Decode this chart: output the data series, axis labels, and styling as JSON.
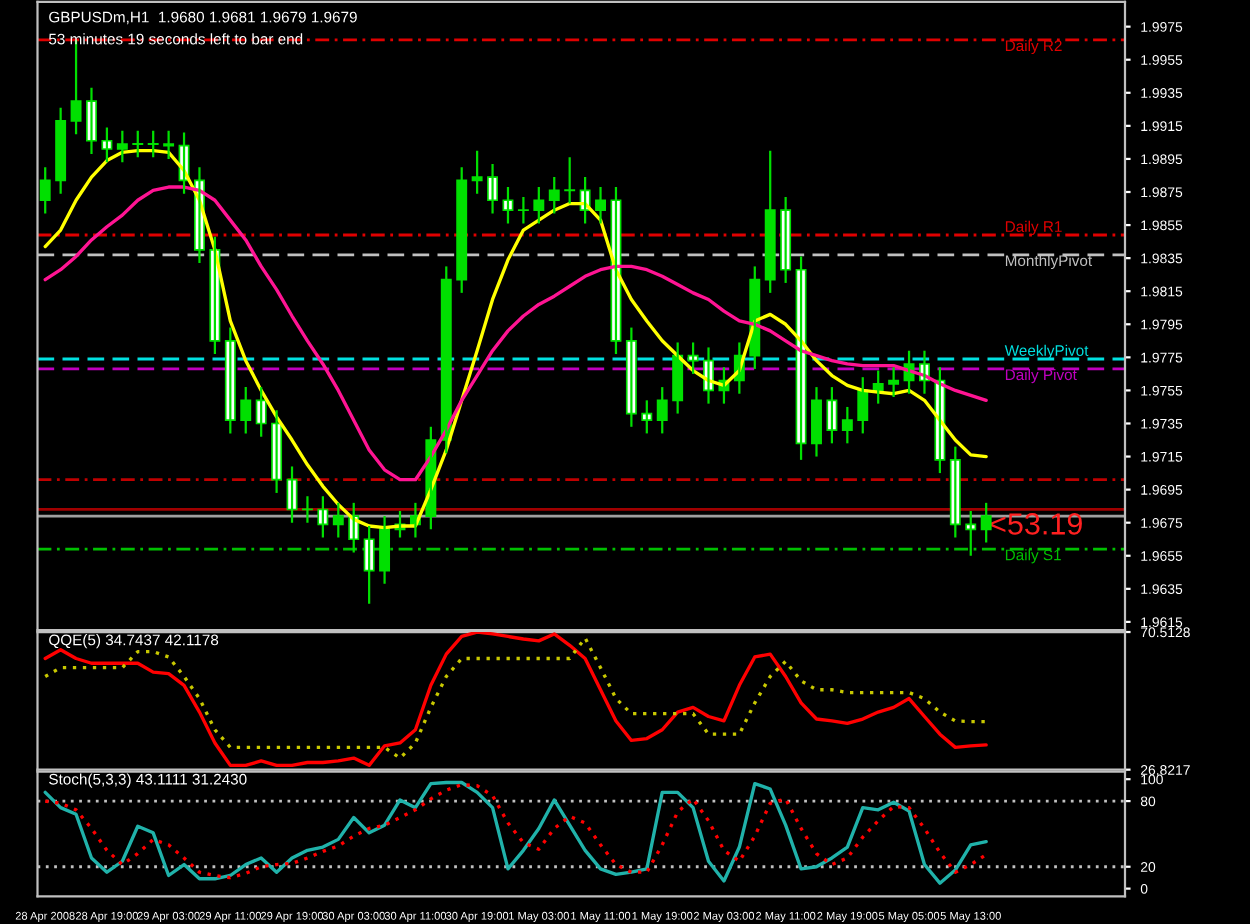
{
  "chart_data": [
    {
      "type": "candlestick",
      "title": "GBPUSDm,H1  1.9680 1.9681 1.9679 1.9679",
      "subtitle": "53 minutes 19 seconds left to bar end",
      "categories": [
        null,
        null,
        null,
        null,
        null,
        null,
        null,
        null,
        null,
        null,
        null,
        null,
        null,
        null,
        null,
        null,
        null,
        null,
        null,
        null,
        null,
        null,
        null,
        null,
        null,
        null,
        null,
        null,
        null,
        null,
        null,
        null,
        null,
        null,
        null,
        null,
        null,
        null,
        null,
        null,
        null,
        null,
        null,
        null,
        null,
        null,
        null,
        null,
        null,
        null,
        null,
        null,
        null,
        null,
        null,
        null,
        null,
        null,
        null,
        null,
        null,
        null
      ],
      "ohlc": [
        [
          1.987,
          1.989,
          1.9862,
          1.9882
        ],
        [
          1.9882,
          1.9926,
          1.9874,
          1.9918
        ],
        [
          1.9918,
          1.9967,
          1.991,
          1.993
        ],
        [
          1.993,
          1.9938,
          1.9898,
          1.9906
        ],
        [
          1.9906,
          1.9914,
          1.9893,
          1.9901
        ],
        [
          1.9901,
          1.9912,
          1.9893,
          1.9904
        ],
        [
          1.9904,
          1.9912,
          1.9896,
          1.9904
        ],
        [
          1.9904,
          1.9912,
          1.9896,
          1.9904
        ],
        [
          1.9904,
          1.9912,
          1.9895,
          1.9903
        ],
        [
          1.9903,
          1.9911,
          1.9874,
          1.9882
        ],
        [
          1.9882,
          1.989,
          1.9832,
          1.984
        ],
        [
          1.984,
          1.9848,
          1.9777,
          1.9785
        ],
        [
          1.9785,
          1.9793,
          1.9729,
          1.9737
        ],
        [
          1.9737,
          1.9757,
          1.9729,
          1.9749
        ],
        [
          1.9749,
          1.9757,
          1.9727,
          1.9735
        ],
        [
          1.9735,
          1.9743,
          1.9693,
          1.9701
        ],
        [
          1.9701,
          1.9709,
          1.9675,
          1.9683
        ],
        [
          1.9683,
          1.9691,
          1.9675,
          1.9683
        ],
        [
          1.9683,
          1.9691,
          1.9666,
          1.9674
        ],
        [
          1.9674,
          1.9687,
          1.9666,
          1.9679
        ],
        [
          1.9679,
          1.9687,
          1.9657,
          1.9665
        ],
        [
          1.9665,
          1.9673,
          1.9626,
          1.9646
        ],
        [
          1.9646,
          1.9679,
          1.9638,
          1.9671
        ],
        [
          1.9671,
          1.9682,
          1.9666,
          1.9674
        ],
        [
          1.9674,
          1.9687,
          1.9666,
          1.9679
        ],
        [
          1.9679,
          1.9733,
          1.9671,
          1.9725
        ],
        [
          1.9725,
          1.983,
          1.9717,
          1.9822
        ],
        [
          1.9822,
          1.989,
          1.9814,
          1.9882
        ],
        [
          1.9882,
          1.99,
          1.9874,
          1.9884
        ],
        [
          1.9884,
          1.9892,
          1.9862,
          1.987
        ],
        [
          1.987,
          1.9878,
          1.9856,
          1.9864
        ],
        [
          1.9864,
          1.9872,
          1.9856,
          1.9864
        ],
        [
          1.9864,
          1.9878,
          1.9856,
          1.987
        ],
        [
          1.987,
          1.9884,
          1.9862,
          1.9876
        ],
        [
          1.9876,
          1.9896,
          1.9868,
          1.9876
        ],
        [
          1.9876,
          1.9884,
          1.9856,
          1.9864
        ],
        [
          1.9864,
          1.9878,
          1.9856,
          1.987
        ],
        [
          1.987,
          1.9878,
          1.9777,
          1.9785
        ],
        [
          1.9785,
          1.9793,
          1.9733,
          1.9741
        ],
        [
          1.9741,
          1.9749,
          1.9729,
          1.9737
        ],
        [
          1.9737,
          1.9757,
          1.9729,
          1.9749
        ],
        [
          1.9749,
          1.9784,
          1.9741,
          1.9776
        ],
        [
          1.9776,
          1.9784,
          1.9765,
          1.9773
        ],
        [
          1.9773,
          1.9781,
          1.9747,
          1.9755
        ],
        [
          1.9755,
          1.9769,
          1.9747,
          1.9761
        ],
        [
          1.9761,
          1.9784,
          1.9753,
          1.9776
        ],
        [
          1.9776,
          1.983,
          1.9768,
          1.9822
        ],
        [
          1.9822,
          1.99,
          1.9814,
          1.9864
        ],
        [
          1.9864,
          1.9872,
          1.982,
          1.9828
        ],
        [
          1.9828,
          1.9836,
          1.9713,
          1.9723
        ],
        [
          1.9723,
          1.9757,
          1.9715,
          1.9749
        ],
        [
          1.9749,
          1.9757,
          1.9723,
          1.9731
        ],
        [
          1.9731,
          1.9745,
          1.9723,
          1.9737
        ],
        [
          1.9737,
          1.9763,
          1.9729,
          1.9755
        ],
        [
          1.9755,
          1.9767,
          1.9747,
          1.9759
        ],
        [
          1.9759,
          1.9769,
          1.9751,
          1.9761
        ],
        [
          1.9761,
          1.9779,
          1.9753,
          1.9771
        ],
        [
          1.9771,
          1.9779,
          1.9753,
          1.9761
        ],
        [
          1.9761,
          1.9769,
          1.9705,
          1.9713
        ],
        [
          1.9713,
          1.9721,
          1.9666,
          1.9674
        ],
        [
          1.9674,
          1.9682,
          1.9655,
          1.9671
        ],
        [
          1.9671,
          1.9687,
          1.9663,
          1.9679
        ]
      ],
      "series": [
        {
          "type": "line",
          "color": "#ffff00",
          "values": [
            1.9842,
            1.9852,
            1.987,
            1.9884,
            1.9894,
            1.9899,
            1.99,
            1.99,
            1.9899,
            1.9888,
            1.987,
            1.984,
            1.9797,
            1.9773,
            1.9755,
            1.9739,
            1.9725,
            1.971,
            1.9697,
            1.9686,
            1.9677,
            1.9673,
            1.9672,
            1.9673,
            1.9673,
            1.9695,
            1.9719,
            1.9749,
            1.9779,
            1.981,
            1.9834,
            1.9852,
            1.9858,
            1.9864,
            1.9868,
            1.9868,
            1.9858,
            1.9828,
            1.981,
            1.9797,
            1.9785,
            1.9776,
            1.9767,
            1.9761,
            1.9758,
            1.9767,
            1.9797,
            1.9801,
            1.9795,
            1.9785,
            1.9773,
            1.9764,
            1.9758,
            1.9755,
            1.9754,
            1.9753,
            1.9755,
            1.9749,
            1.9737,
            1.9725,
            1.9716,
            1.9715
          ]
        },
        {
          "type": "line",
          "color": "#ff1493",
          "values": [
            1.9822,
            1.9828,
            1.9836,
            1.9846,
            1.9854,
            1.9861,
            1.987,
            1.9876,
            1.9878,
            1.9878,
            1.9876,
            1.987,
            1.9858,
            1.9846,
            1.983,
            1.9816,
            1.98,
            1.9785,
            1.9771,
            1.9755,
            1.9737,
            1.9719,
            1.9707,
            1.9701,
            1.9701,
            1.9715,
            1.9731,
            1.9749,
            1.9764,
            1.9779,
            1.9791,
            1.98,
            1.9807,
            1.9812,
            1.9818,
            1.9824,
            1.9828,
            1.983,
            1.983,
            1.9828,
            1.9824,
            1.9819,
            1.9814,
            1.981,
            1.9803,
            1.9797,
            1.9795,
            1.9791,
            1.9785,
            1.9779,
            1.9776,
            1.9773,
            1.9771,
            1.977,
            1.977,
            1.977,
            1.9767,
            1.9764,
            1.9759,
            1.9755,
            1.9752,
            1.9749
          ]
        }
      ],
      "ref_lines": [
        {
          "axis": "y",
          "value": 1.9967,
          "label": "Daily R2",
          "color": "#e00000",
          "line_style": "dashdot"
        },
        {
          "axis": "y",
          "value": 1.9849,
          "label": "Daily R1",
          "color": "#e00000",
          "line_style": "dashdot"
        },
        {
          "axis": "y",
          "value": 1.9837,
          "label": "MonthlyPivot",
          "color": "#c0c0c0",
          "line_style": "dashed"
        },
        {
          "axis": "y",
          "value": 1.9774,
          "label": "WeeklyPivot",
          "color": "#00e0e0",
          "line_style": "dashed"
        },
        {
          "axis": "y",
          "value": 1.9768,
          "label": "Daily Pivot",
          "color": "#c000c0",
          "line_style": "dashed"
        },
        {
          "axis": "y",
          "value": 1.9701,
          "color": "#c00000",
          "line_style": "dashdot"
        },
        {
          "axis": "y",
          "value": 1.9683,
          "color": "#a00000",
          "line_style": "solid"
        },
        {
          "axis": "y",
          "value": 1.9679,
          "color": "#a0a0a0",
          "line_style": "solid"
        },
        {
          "axis": "y",
          "value": 1.9659,
          "label": "Daily S1",
          "color": "#00c000",
          "line_style": "dashdot"
        }
      ],
      "annotations": [
        "<53.19"
      ],
      "ylim": [
        1.961,
        1.999
      ],
      "yticks": [
        1.9615,
        1.9635,
        1.9655,
        1.9675,
        1.9695,
        1.9715,
        1.9735,
        1.9755,
        1.9775,
        1.9795,
        1.9815,
        1.9835,
        1.9855,
        1.9875,
        1.9895,
        1.9915,
        1.9935,
        1.9955,
        1.9975
      ],
      "tick_labels": "y",
      "grid": false,
      "legend": false
    },
    {
      "type": "line",
      "title": "QQE(5) 34.7437 42.1178",
      "categories": [
        null,
        null,
        null,
        null,
        null,
        null,
        null,
        null,
        null,
        null,
        null,
        null,
        null,
        null,
        null,
        null,
        null,
        null,
        null,
        null,
        null,
        null,
        null,
        null,
        null,
        null,
        null,
        null,
        null,
        null,
        null,
        null,
        null,
        null,
        null,
        null,
        null,
        null,
        null,
        null,
        null,
        null,
        null,
        null,
        null,
        null,
        null,
        null,
        null,
        null,
        null,
        null,
        null,
        null,
        null,
        null,
        null,
        null,
        null,
        null,
        null,
        null
      ],
      "series": [
        {
          "color": "#ff0000",
          "line_style": "solid",
          "values": [
            62.1,
            64.9,
            62.1,
            60.6,
            60.6,
            60.6,
            60.6,
            57.8,
            57.3,
            53.6,
            45.1,
            35.3,
            28.2,
            28.2,
            29.6,
            28.2,
            28.2,
            29.1,
            29.1,
            29.6,
            30.5,
            28.2,
            34.4,
            35.3,
            39.5,
            53.6,
            63.5,
            69.1,
            70.5,
            69.9,
            69.1,
            68.3,
            67.7,
            69.9,
            66.3,
            62.1,
            52.2,
            42.3,
            36.1,
            36.7,
            39.5,
            45.1,
            46.6,
            43.7,
            42.3,
            53.6,
            62.6,
            63.5,
            56.4,
            48.0,
            42.9,
            42.3,
            41.5,
            42.9,
            45.1,
            46.6,
            49.4,
            43.7,
            38.1,
            33.9,
            34.4,
            34.7
          ]
        },
        {
          "color": "#c8c800",
          "line_style": "dotted",
          "values": [
            56.4,
            59.2,
            59.2,
            59.2,
            59.2,
            59.2,
            64.3,
            64.3,
            62.6,
            56.4,
            49.4,
            39.5,
            33.9,
            33.9,
            33.9,
            33.9,
            33.9,
            33.9,
            33.9,
            33.9,
            33.9,
            33.9,
            33.9,
            30.5,
            35.3,
            46.6,
            56.4,
            62.1,
            62.1,
            62.1,
            62.1,
            62.1,
            62.1,
            62.1,
            62.1,
            68.6,
            59.2,
            49.4,
            44.6,
            44.6,
            44.6,
            44.6,
            44.6,
            38.1,
            38.1,
            38.1,
            48.0,
            56.4,
            61.2,
            55.0,
            52.2,
            52.2,
            51.3,
            51.3,
            51.3,
            51.3,
            51.3,
            49.4,
            45.1,
            42.3,
            42.1,
            42.1
          ]
        }
      ],
      "ylim": [
        26.8217,
        70.5128
      ],
      "yticks": [
        26.8217,
        70.5128
      ],
      "tick_labels": "y",
      "grid": false
    },
    {
      "type": "line",
      "title": "Stoch(5,3,3) 43.1111 31.2430",
      "categories": [
        "28 Apr 2008",
        null,
        null,
        null,
        "28 Apr 19:00",
        null,
        null,
        null,
        "29 Apr 03:00",
        null,
        null,
        null,
        "29 Apr 11:00",
        null,
        null,
        null,
        "29 Apr 19:00",
        null,
        null,
        null,
        "30 Apr 03:00",
        null,
        null,
        null,
        "30 Apr 11:00",
        null,
        null,
        null,
        "30 Apr 19:00",
        null,
        null,
        null,
        "1 May 03:00",
        null,
        null,
        null,
        "1 May 11:00",
        null,
        null,
        null,
        "1 May 19:00",
        null,
        null,
        null,
        "2 May 03:00",
        null,
        null,
        null,
        "2 May 11:00",
        null,
        null,
        null,
        "2 May 19:00",
        null,
        null,
        null,
        "5 May 05:00",
        null,
        null,
        null,
        "5 May 13:00",
        null
      ],
      "series": [
        {
          "color": "#20b2aa",
          "line_style": "solid",
          "values": [
            88,
            74,
            68,
            28,
            15,
            25,
            57,
            51,
            12,
            22,
            9,
            9,
            12,
            22,
            28,
            15,
            28,
            35,
            38,
            45,
            65,
            51,
            58,
            81,
            74,
            96,
            97,
            97,
            88,
            74,
            18,
            35,
            55,
            81,
            58,
            35,
            18,
            13,
            15,
            18,
            88,
            88,
            74,
            25,
            7,
            38,
            96,
            91,
            58,
            18,
            20,
            28,
            38,
            74,
            72,
            79,
            71,
            22,
            5,
            17,
            40,
            43
          ]
        },
        {
          "color": "#ff0000",
          "line_style": "dotted",
          "values": [
            80,
            78,
            72,
            55,
            35,
            22,
            32,
            45,
            40,
            28,
            15,
            12,
            10,
            14,
            20,
            22,
            23,
            28,
            34,
            39,
            48,
            55,
            58,
            65,
            72,
            82,
            90,
            95,
            94,
            85,
            60,
            42,
            36,
            55,
            66,
            60,
            40,
            22,
            15,
            15,
            40,
            70,
            82,
            62,
            35,
            25,
            48,
            78,
            82,
            55,
            32,
            22,
            28,
            47,
            62,
            75,
            74,
            55,
            33,
            15,
            22,
            31
          ]
        }
      ],
      "ref_lines": [
        {
          "axis": "y",
          "value": 80,
          "color": "#c0c0c0",
          "line_style": "dotted"
        },
        {
          "axis": "y",
          "value": 20,
          "color": "#c0c0c0",
          "line_style": "dotted"
        }
      ],
      "ylim": [
        -7,
        107
      ],
      "yticks": [
        0,
        20,
        80,
        100
      ],
      "grid": false
    }
  ]
}
